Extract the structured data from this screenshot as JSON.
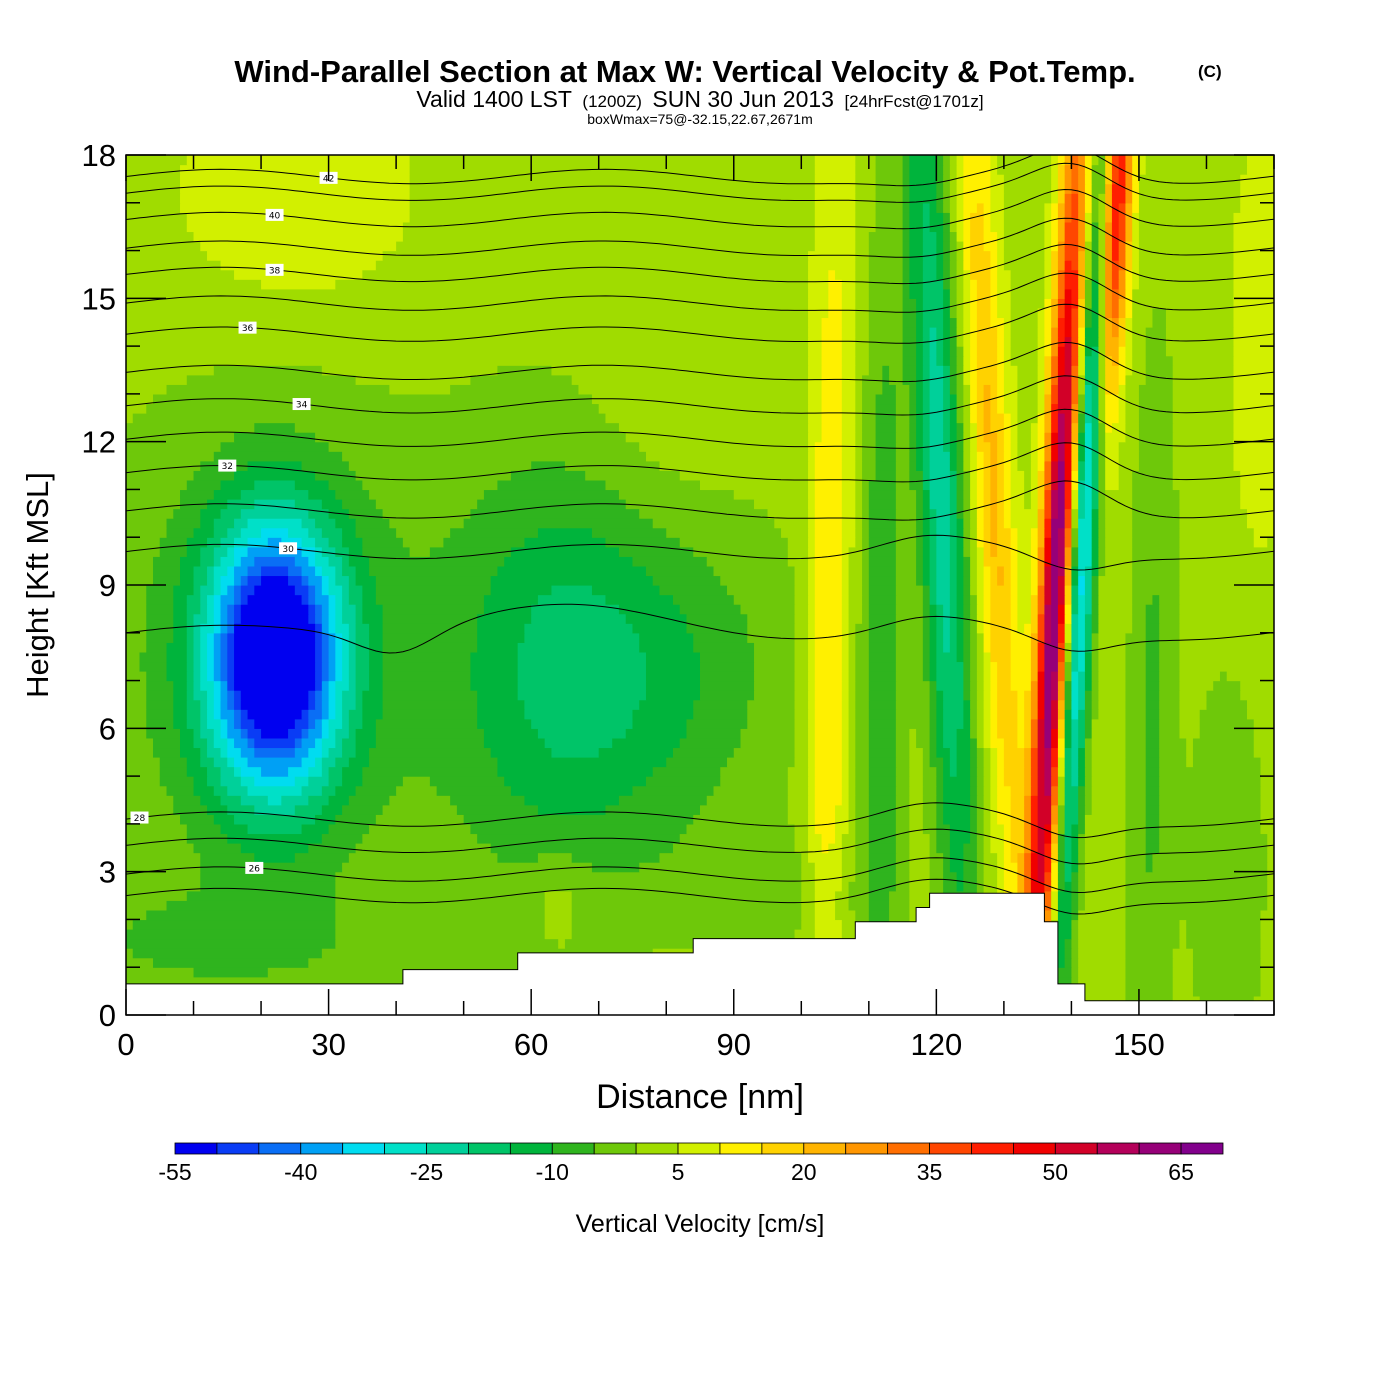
{
  "chart_data": {
    "type": "heatmap",
    "title": "Wind-Parallel Section at Max W: Vertical Velocity & Pot.Temp.",
    "title_mark": "(C)",
    "subtitle_main": "Valid 1400 LST",
    "subtitle_utc": "(1200Z)",
    "subtitle_date": "SUN 30 Jun 2013",
    "subtitle_fcst": "[24hrFcst@1701z]",
    "subtitle2": "boxWmax=75@-32.15,22.67,2671m",
    "xlabel": "Distance [nm]",
    "ylabel": "Height [Kft MSL]",
    "xlim": [
      0,
      170
    ],
    "ylim": [
      0,
      18
    ],
    "x_ticks": [
      0,
      30,
      60,
      90,
      120,
      150
    ],
    "y_ticks": [
      0,
      3,
      6,
      9,
      12,
      15,
      18
    ],
    "colorbar": {
      "label": "Vertical Velocity [cm/s]",
      "levels": [
        -55,
        -50,
        -45,
        -40,
        -35,
        -30,
        -25,
        -20,
        -15,
        -10,
        -5,
        0,
        5,
        10,
        15,
        20,
        25,
        30,
        35,
        40,
        45,
        50,
        55,
        60,
        65,
        70
      ],
      "tick_labels": [
        "-55",
        "-40",
        "-25",
        "-10",
        "5",
        "20",
        "35",
        "50",
        "65"
      ],
      "tick_values": [
        -55,
        -40,
        -25,
        -10,
        5,
        20,
        35,
        50,
        65
      ],
      "colors": [
        "#0000f0",
        "#0a3cf5",
        "#0a6ef5",
        "#00a0f5",
        "#00dcf0",
        "#00e0c8",
        "#00d09a",
        "#00c468",
        "#00b43c",
        "#2fb41e",
        "#6ec80a",
        "#a0dc00",
        "#d2f000",
        "#fff000",
        "#ffd200",
        "#ffb400",
        "#ff9600",
        "#ff6e00",
        "#ff4600",
        "#ff1e00",
        "#f00000",
        "#d20028",
        "#b4005a",
        "#960078",
        "#82008c"
      ]
    },
    "series": [
      {
        "name": "Vertical Velocity",
        "kind": "filled-contour"
      },
      {
        "name": "Pot.Temp.",
        "kind": "line-contour",
        "contour_labels": [
          42,
          40,
          38,
          36,
          34,
          32,
          30,
          28,
          26
        ]
      }
    ],
    "w_features": [
      {
        "x": 22,
        "y": 7.5,
        "w": -55
      },
      {
        "x": 75,
        "y": 7.3,
        "w": -15
      },
      {
        "x": 104,
        "y": 7.0,
        "w": 15
      },
      {
        "x": 122,
        "y": 15.0,
        "w": -25
      },
      {
        "x": 137,
        "y": 7.0,
        "w": 55
      },
      {
        "x": 143,
        "y": 17.0,
        "w": 45
      },
      {
        "x": 140,
        "y": 14.0,
        "w": -35
      }
    ],
    "terrain": [
      [
        0,
        0.65
      ],
      [
        41,
        0.65
      ],
      [
        41,
        0.95
      ],
      [
        58,
        0.95
      ],
      [
        58,
        1.3
      ],
      [
        84,
        1.3
      ],
      [
        84,
        1.6
      ],
      [
        108,
        1.6
      ],
      [
        108,
        1.95
      ],
      [
        117,
        1.95
      ],
      [
        117,
        2.25
      ],
      [
        119,
        2.25
      ],
      [
        119,
        2.55
      ],
      [
        136,
        2.55
      ],
      [
        136,
        1.95
      ],
      [
        138,
        1.95
      ],
      [
        138,
        0.65
      ],
      [
        142,
        0.65
      ],
      [
        142,
        0.3
      ],
      [
        170,
        0.3
      ]
    ],
    "theta_contours": [
      {
        "value": 42,
        "y0": 17.55,
        "label_x": 30,
        "labeled": true
      },
      {
        "value": 41,
        "y0": 17.2,
        "labeled": false
      },
      {
        "value": 40,
        "y0": 16.65,
        "label_x": 22,
        "labeled": true
      },
      {
        "value": 39,
        "y0": 16.05,
        "labeled": false
      },
      {
        "value": 38,
        "y0": 15.5,
        "label_x": 22,
        "labeled": true
      },
      {
        "value": 37,
        "y0": 14.9,
        "labeled": false
      },
      {
        "value": 36,
        "y0": 14.25,
        "label_x": 18,
        "labeled": true
      },
      {
        "value": 35,
        "y0": 13.45,
        "labeled": false
      },
      {
        "value": 34,
        "y0": 12.75,
        "label_x": 26,
        "labeled": true
      },
      {
        "value": 33,
        "y0": 12.05,
        "labeled": false
      },
      {
        "value": 32,
        "y0": 11.35,
        "label_x": 15,
        "labeled": true
      },
      {
        "value": 31,
        "y0": 10.55,
        "labeled": false
      },
      {
        "value": 30,
        "y0": 9.7,
        "label_x": 24,
        "labeled": true
      },
      {
        "value": 29,
        "y0": 8.0,
        "labeled": false
      },
      {
        "value": 28,
        "y0": 4.1,
        "label_x": 2,
        "labeled": true
      },
      {
        "value": 27,
        "y0": 3.55,
        "labeled": false
      },
      {
        "value": 26,
        "y0": 2.95,
        "label_x": 19,
        "labeled": true
      },
      {
        "value": 25,
        "y0": 2.5,
        "labeled": false
      }
    ]
  }
}
